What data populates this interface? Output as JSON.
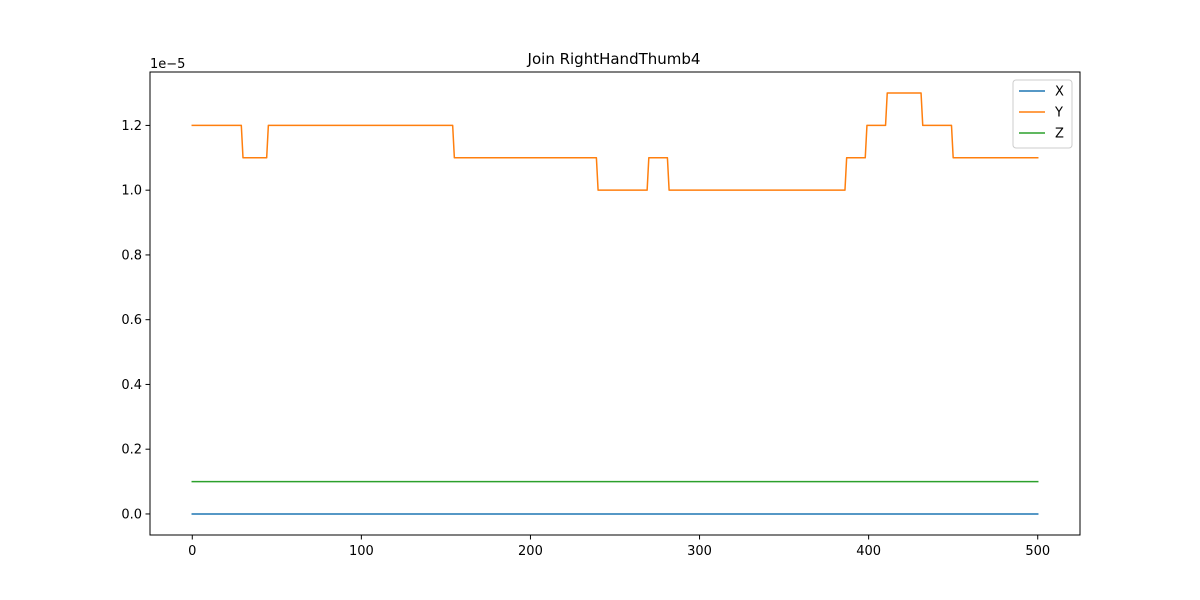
{
  "chart_data": {
    "type": "line",
    "title": "Join RightHandThumb4",
    "xlabel": "",
    "ylabel": "",
    "y_offset_label": "1e−5",
    "y_scale_factor": 1e-05,
    "xlim": [
      -25,
      525
    ],
    "ylim": [
      -0.065,
      1.365
    ],
    "x_ticks": [
      0,
      100,
      200,
      300,
      400,
      500
    ],
    "x_tick_labels": [
      "0",
      "100",
      "200",
      "300",
      "400",
      "500"
    ],
    "y_ticks": [
      0.0,
      0.2,
      0.4,
      0.6,
      0.8,
      1.0,
      1.2
    ],
    "y_tick_labels": [
      "0.0",
      "0.2",
      "0.4",
      "0.6",
      "0.8",
      "1.0",
      "1.2"
    ],
    "grid": false,
    "legend_position": "top-right",
    "series": [
      {
        "name": "X",
        "color": "#1f77b4",
        "points": [
          [
            0,
            0.0
          ],
          [
            500,
            0.0
          ]
        ]
      },
      {
        "name": "Y",
        "color": "#ff7f0e",
        "points": [
          [
            0,
            1.2
          ],
          [
            29,
            1.2
          ],
          [
            30,
            1.1
          ],
          [
            44,
            1.1
          ],
          [
            45,
            1.2
          ],
          [
            154,
            1.2
          ],
          [
            155,
            1.1
          ],
          [
            239,
            1.1
          ],
          [
            240,
            1.0
          ],
          [
            269,
            1.0
          ],
          [
            270,
            1.1
          ],
          [
            281,
            1.1
          ],
          [
            282,
            1.0
          ],
          [
            386,
            1.0
          ],
          [
            387,
            1.1
          ],
          [
            398,
            1.1
          ],
          [
            399,
            1.2
          ],
          [
            410,
            1.2
          ],
          [
            411,
            1.3
          ],
          [
            431,
            1.3
          ],
          [
            432,
            1.2
          ],
          [
            449,
            1.2
          ],
          [
            450,
            1.1
          ],
          [
            500,
            1.1
          ]
        ]
      },
      {
        "name": "Z",
        "color": "#2ca02c",
        "points": [
          [
            0,
            0.1
          ],
          [
            500,
            0.1
          ]
        ]
      }
    ]
  }
}
